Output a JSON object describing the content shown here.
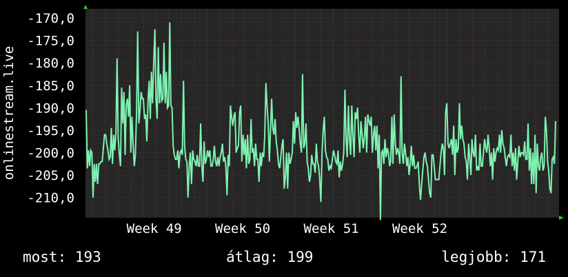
{
  "chart_data": {
    "type": "line",
    "ylabel": "onlinestream.live",
    "ylim": [
      -214.5,
      -168.0
    ],
    "yticks": [
      -170,
      -175,
      -180,
      -185,
      -190,
      -195,
      -200,
      -205,
      -210
    ],
    "ytick_labels": [
      "-170,0",
      "-175,0",
      "-180,0",
      "-185,0",
      "-190,0",
      "-195,0",
      "-200,0",
      "-205,0",
      "-210,0"
    ],
    "xticks": [
      49,
      50,
      51,
      52
    ],
    "xtick_labels": [
      "Week 49",
      "Week 50",
      "Week 51",
      "Week 52"
    ],
    "xlim": [
      48.2,
      53.55
    ],
    "grid": true,
    "series": [
      {
        "color": "#7ff2b2",
        "values": [
          -190.5,
          -203.5,
          -199.5,
          -203,
          -199.5,
          -200,
          -210,
          -202.5,
          -206.5,
          -202.5,
          -207,
          -202.5,
          -202.5,
          -202,
          -202,
          -199,
          -196,
          -196,
          -198,
          -199.5,
          -201.5,
          -201,
          -194.5,
          -202.5,
          -196,
          -199.5,
          -195.5,
          -179.0,
          -197,
          -200.5,
          -203,
          -185.5,
          -193.5,
          -186.5,
          -200.5,
          -189.5,
          -188,
          -192,
          -185,
          -200,
          -192,
          -198,
          -203,
          -200.5,
          -191.0,
          -173.0,
          -193.5,
          -190.5,
          -186.5,
          -188,
          -188,
          -192.5,
          -191.5,
          -197.5,
          -188.5,
          -184,
          -192.5,
          -182,
          -189,
          -180,
          -172.5,
          -188,
          -192.5,
          -176.5,
          -189,
          -182.5,
          -188.5,
          -188,
          -175.5,
          -189,
          -182,
          -190,
          -189.5,
          -171.0,
          -189.5,
          -190,
          -198.5,
          -200.5,
          -201.5,
          -201.5,
          -199.5,
          -203.5,
          -200,
          -199.5,
          -200.5,
          -184.0,
          -198.5,
          -201.5,
          -202,
          -210.0,
          -203,
          -200,
          -207,
          -199.5,
          -201.5,
          -202,
          -203,
          -200.5,
          -203,
          -203,
          -193.5,
          -203,
          -206.5,
          -197.5,
          -202.5,
          -201.5,
          -199.5,
          -201,
          -199.5,
          -203,
          -203,
          -201.5,
          -198.5,
          -202,
          -203,
          -201,
          -203,
          -201,
          -200,
          -198,
          -202,
          -201,
          -203,
          -209.5,
          -200.5,
          -203,
          -189.5,
          -192,
          -194,
          -192,
          -191,
          -200,
          -199,
          -198.5,
          -191,
          -189.5,
          -202,
          -196,
          -200.5,
          -197,
          -203.5,
          -196,
          -202.5,
          -201.5,
          -192.5,
          -200,
          -199,
          -203,
          -198,
          -201.5,
          -201.5,
          -206.5,
          -200,
          -203,
          -200,
          -201,
          -196,
          -184.5,
          -189.5,
          -193.5,
          -202,
          -195,
          -188,
          -194.5,
          -196,
          -192.5,
          -197.5,
          -199.5,
          -202.5,
          -203.5,
          -201,
          -198.5,
          -197,
          -208,
          -205.5,
          -200,
          -208,
          -200,
          -202.5,
          -201.5,
          -200,
          -193,
          -198,
          -191,
          -194.5,
          -192,
          -194.5,
          -198,
          -200,
          -182.5,
          -199,
          -198,
          -193.5,
          -202,
          -203.5,
          -206.5,
          -205,
          -200.5,
          -202.5,
          -202.5,
          -204.5,
          -198,
          -202,
          -203,
          -206,
          -211,
          -200,
          -195,
          -192,
          -199.5,
          -201,
          -201.5,
          -204,
          -203,
          -203.5,
          -201.5,
          -199.5,
          -200.5,
          -202,
          -202.5,
          -199.5,
          -205.5,
          -202,
          -204,
          -202.5,
          -200,
          -186,
          -197,
          -201,
          -189.5,
          -197,
          -200.5,
          -189.5,
          -196,
          -201,
          -191,
          -192.5,
          -190,
          -196,
          -200,
          -193,
          -196,
          -199,
          -196.5,
          -192,
          -200,
          -191.5,
          -193,
          -194,
          -192,
          -200,
          -196,
          -194,
          -199.5,
          -194,
          -203.5,
          -196,
          -215,
          -200,
          -199.5,
          -202.5,
          -197,
          -201,
          -199,
          -200,
          -203,
          -202,
          -192,
          -202.5,
          -191.5,
          -198,
          -200.5,
          -199,
          -200,
          -202.5,
          -183,
          -200,
          -202.5,
          -198,
          -200,
          -203,
          -201,
          -205,
          -202.5,
          -198.5,
          -203,
          -200.5,
          -203.5,
          -203.5,
          -203,
          -202,
          -207,
          -210.5,
          -207,
          -204,
          -201,
          -200,
          -202,
          -203,
          -206,
          -209,
          -210,
          -200.5,
          -200.5,
          -203,
          -206,
          -206,
          -206,
          -206,
          -203,
          -200,
          -198,
          -199,
          -205,
          -191,
          -189,
          -198,
          -199,
          -198,
          -197,
          -200.5,
          -194,
          -205,
          -197,
          -200,
          -199,
          -189,
          -197,
          -194,
          -197,
          -198,
          -201,
          -202,
          -206,
          -198,
          -201,
          -205,
          -197,
          -200,
          -201,
          -196,
          -204,
          -203,
          -204,
          -198,
          -203,
          -203,
          -200,
          -197,
          -199,
          -200,
          -196,
          -199,
          -203,
          -200,
          -206,
          -199,
          -202,
          -200,
          -199,
          -199.5,
          -196,
          -200,
          -195,
          -198,
          -199,
          -201,
          -203,
          -201,
          -200.5,
          -201,
          -196,
          -203,
          -200,
          -204,
          -199,
          -206,
          -202,
          -198.5,
          -201,
          -200,
          -200,
          -200.5,
          -197.5,
          -201.5,
          -201.5,
          -193.5,
          -204,
          -199,
          -207,
          -200,
          -207,
          -196,
          -209,
          -198,
          -203,
          -204,
          -201,
          -200,
          -204,
          -203,
          -192,
          -195,
          -202,
          -204,
          -208,
          -209,
          -201.5,
          -201,
          -202.5,
          -193.0
        ]
      }
    ]
  },
  "stats": {
    "now": "most: 193",
    "avg": "átlag: 199",
    "best": "legjobb: 171"
  },
  "colors": {
    "background": "#000000",
    "plot_background": "#262626",
    "grid": "#5a3a3a",
    "line": "#7ff2b2",
    "axis_arrow": "#22cc22",
    "text": "#ffffff"
  }
}
